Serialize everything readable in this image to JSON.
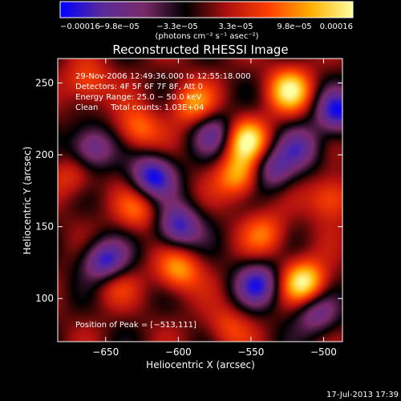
{
  "chart_data": {
    "type": "heatmap",
    "title": "Reconstructed RHESSI Image",
    "xlabel": "Heliocentric X (arcsec)",
    "ylabel": "Heliocentric Y (arcsec)",
    "xlim": [
      -683,
      -487
    ],
    "ylim": [
      70,
      267
    ],
    "x_ticks": [
      -650,
      -600,
      -550,
      -500
    ],
    "y_ticks": [
      100,
      150,
      200,
      250
    ],
    "x_tick_labels": [
      "−650",
      "−600",
      "−550",
      "−500"
    ],
    "y_tick_labels": [
      "100",
      "150",
      "200",
      "250"
    ],
    "colorbar": {
      "range": [
        -0.00016,
        0.00016
      ],
      "tick_labels": [
        "−0.00016",
        "−9.8e−05",
        "−3.3e−05",
        "3.3e−05",
        "9.8e−05",
        "0.00016"
      ],
      "unit": "(photons cm⁻² s⁻¹ asec⁻²)",
      "colors": [
        "#0000ff",
        "#5a2a9a",
        "#7a2a6a",
        "#000000",
        "#b01010",
        "#ff4000",
        "#ffb000",
        "#ffffa0"
      ]
    },
    "annotations": [
      "29-Nov-2006 12:49:36.000 to 12:55:18.000",
      "Detectors: 4F 5F 6F 7F 8F, Att 0",
      "Energy Range: 25.0 − 50.0 keV",
      "Clean     Total counts: 1.03E+04"
    ],
    "peak_label": "Position of Peak = [−513,111]",
    "peak_position": [
      -513,
      111
    ],
    "sources": [
      {
        "x": -513,
        "y": 111,
        "value": 0.00016
      },
      {
        "x": -523,
        "y": 245,
        "value": 0.00014
      },
      {
        "x": -553,
        "y": 210,
        "value": 0.00015
      },
      {
        "x": -558,
        "y": 185,
        "value": 0.00012
      },
      {
        "x": -590,
        "y": 235,
        "value": 0.0001
      },
      {
        "x": -600,
        "y": 120,
        "value": 0.00011
      },
      {
        "x": -628,
        "y": 218,
        "value": 9e-05
      },
      {
        "x": -628,
        "y": 162,
        "value": 8e-05
      },
      {
        "x": -663,
        "y": 250,
        "value": 8e-05
      },
      {
        "x": -645,
        "y": 112,
        "value": 7e-05
      },
      {
        "x": -672,
        "y": 185,
        "value": 6e-05
      },
      {
        "x": -495,
        "y": 170,
        "value": 9e-05
      },
      {
        "x": -540,
        "y": 145,
        "value": 8e-05
      },
      {
        "x": -566,
        "y": 80,
        "value": 6e-05
      },
      {
        "x": -618,
        "y": 185,
        "value": -0.00015
      },
      {
        "x": -600,
        "y": 150,
        "value": -0.00014
      },
      {
        "x": -650,
        "y": 125,
        "value": -0.00016
      },
      {
        "x": -545,
        "y": 110,
        "value": -0.00013
      },
      {
        "x": -490,
        "y": 230,
        "value": -0.00014
      },
      {
        "x": -660,
        "y": 205,
        "value": -0.00012
      },
      {
        "x": -575,
        "y": 215,
        "value": -0.0001
      },
      {
        "x": -535,
        "y": 190,
        "value": -0.00011
      },
      {
        "x": -505,
        "y": 90,
        "value": -0.0001
      },
      {
        "x": -515,
        "y": 205,
        "value": -9e-05
      }
    ]
  },
  "footer": {
    "timestamp": "17-Jul-2013 17:39"
  }
}
